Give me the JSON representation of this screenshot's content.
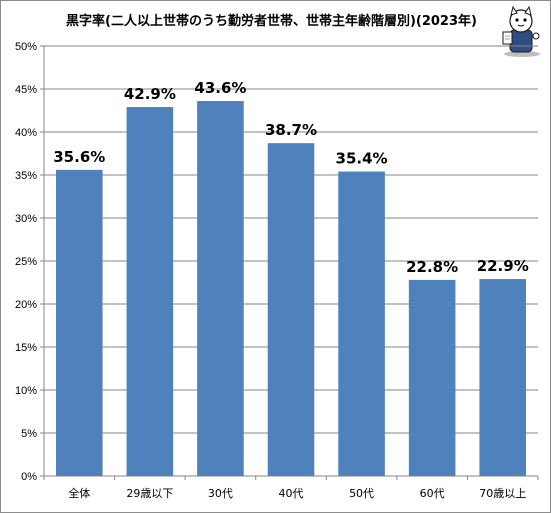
{
  "chart_data": {
    "type": "bar",
    "title": "黒字率(二人以上世帯のうち勤労者世帯、世帯主年齢階層別)(2023年)",
    "categories": [
      "全体",
      "29歳以下",
      "30代",
      "40代",
      "50代",
      "60代",
      "70歳以上"
    ],
    "values": [
      35.6,
      42.9,
      43.6,
      38.7,
      35.4,
      22.8,
      22.9
    ],
    "data_labels": [
      "35.6%",
      "42.9%",
      "43.6%",
      "38.7%",
      "35.4%",
      "22.8%",
      "22.9%"
    ],
    "ylim": [
      0,
      50
    ],
    "yticks": [
      0,
      5,
      10,
      15,
      20,
      25,
      30,
      35,
      40,
      45,
      50
    ],
    "ytick_labels": [
      "0%",
      "5%",
      "10%",
      "15%",
      "20%",
      "25%",
      "30%",
      "35%",
      "40%",
      "45%",
      "50%"
    ],
    "xlabel": "",
    "ylabel": "",
    "grid": true,
    "legend": "none",
    "bar_color": "#4f81bd",
    "grid_color": "#868686"
  },
  "mascot": {
    "icon": "cat-mascot-icon"
  }
}
